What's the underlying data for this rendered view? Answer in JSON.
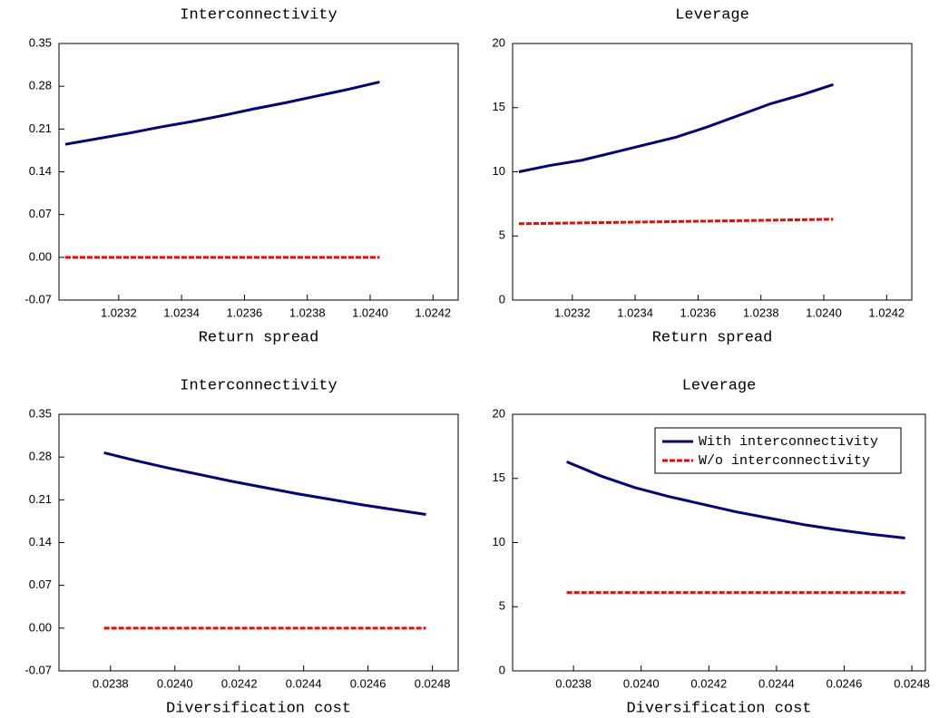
{
  "chart_data": [
    {
      "type": "line",
      "title": "Interconnectivity",
      "x_label": "Return spread",
      "x": [
        1.02303,
        1.02313,
        1.02323,
        1.02333,
        1.02343,
        1.02353,
        1.02363,
        1.02373,
        1.02383,
        1.02393,
        1.02403
      ],
      "series": [
        {
          "color": "#000080",
          "dash": false,
          "values": [
            0.185,
            0.194,
            0.203,
            0.213,
            0.222,
            0.232,
            0.243,
            0.253,
            0.264,
            0.275,
            0.287
          ]
        },
        {
          "color": "#ff0000",
          "dash": true,
          "values": [
            0,
            0,
            0,
            0,
            0,
            0,
            0,
            0,
            0,
            0,
            0
          ]
        }
      ],
      "xlim": [
        1.02301,
        1.02428
      ],
      "xticks": [
        1.0232,
        1.0234,
        1.0236,
        1.0238,
        {
          "value": 1.024,
          "label": "1.0240"
        },
        1.0242
      ],
      "ylim": [
        -0.07,
        0.35
      ],
      "yticks": [
        -0.07,
        {
          "value": 0,
          "label": "0.00"
        },
        0.07,
        0.14,
        0.21,
        0.28,
        0.35
      ]
    },
    {
      "type": "line",
      "title": "Leverage",
      "x_label": "Return spread",
      "x": [
        1.02303,
        1.02313,
        1.02323,
        1.02333,
        1.02343,
        1.02353,
        1.02363,
        1.02373,
        1.02383,
        1.02393,
        1.02403
      ],
      "series": [
        {
          "color": "#000080",
          "dash": false,
          "values": [
            10.0,
            10.5,
            10.9,
            11.5,
            12.1,
            12.7,
            13.5,
            14.4,
            15.3,
            16.0,
            16.8
          ]
        },
        {
          "color": "#ff0000",
          "dash": true,
          "values": [
            5.95,
            5.98,
            6.02,
            6.05,
            6.09,
            6.12,
            6.16,
            6.19,
            6.23,
            6.26,
            6.3
          ]
        }
      ],
      "xlim": [
        1.02301,
        1.02428
      ],
      "xticks": [
        1.0232,
        1.0234,
        1.0236,
        1.0238,
        {
          "value": 1.024,
          "label": "1.0240"
        },
        1.0242
      ],
      "ylim": [
        0,
        20
      ],
      "yticks": [
        0,
        5,
        10,
        15,
        20
      ]
    },
    {
      "type": "line",
      "title": "Interconnectivity",
      "x_label": "Diversification cost",
      "x": [
        0.02378,
        0.02388,
        0.02398,
        0.02408,
        0.02418,
        0.02428,
        0.02438,
        0.02448,
        0.02458,
        0.02468,
        0.02478
      ],
      "series": [
        {
          "color": "#000080",
          "dash": false,
          "values": [
            0.287,
            0.274,
            0.262,
            0.251,
            0.24,
            0.23,
            0.22,
            0.211,
            0.202,
            0.194,
            0.186
          ]
        },
        {
          "color": "#ff0000",
          "dash": true,
          "values": [
            0,
            0,
            0,
            0,
            0,
            0,
            0,
            0,
            0,
            0,
            0
          ]
        }
      ],
      "xlim": [
        0.02364,
        0.02488
      ],
      "xticks": [
        0.0238,
        {
          "value": 0.024,
          "label": "0.0240"
        },
        0.0242,
        0.0244,
        0.0246,
        0.0248
      ],
      "ylim": [
        -0.07,
        0.35
      ],
      "yticks": [
        -0.07,
        {
          "value": 0,
          "label": "0.00"
        },
        0.07,
        0.14,
        0.21,
        0.28,
        0.35
      ]
    },
    {
      "type": "line",
      "title": "Leverage",
      "x_label": "Diversification cost",
      "legend": "upper right",
      "x": [
        0.02378,
        0.02388,
        0.02398,
        0.02408,
        0.02418,
        0.02428,
        0.02438,
        0.02448,
        0.02458,
        0.02468,
        0.02478
      ],
      "series": [
        {
          "name": "With interconnectivity",
          "color": "#000080",
          "dash": false,
          "values": [
            16.3,
            15.2,
            14.3,
            13.6,
            13.0,
            12.4,
            11.9,
            11.4,
            11.0,
            10.65,
            10.35
          ]
        },
        {
          "name": "W/o interconnectivity",
          "color": "#ff0000",
          "dash": true,
          "values": [
            6.1,
            6.1,
            6.1,
            6.1,
            6.1,
            6.1,
            6.1,
            6.1,
            6.1,
            6.1,
            6.1
          ]
        }
      ],
      "xlim": [
        0.02362,
        0.02484
      ],
      "xticks": [
        0.0238,
        {
          "value": 0.024,
          "label": "0.0240"
        },
        0.0242,
        0.0244,
        0.0246,
        0.0248
      ],
      "ylim": [
        0,
        20
      ],
      "yticks": [
        0,
        5,
        10,
        15,
        20
      ]
    }
  ]
}
